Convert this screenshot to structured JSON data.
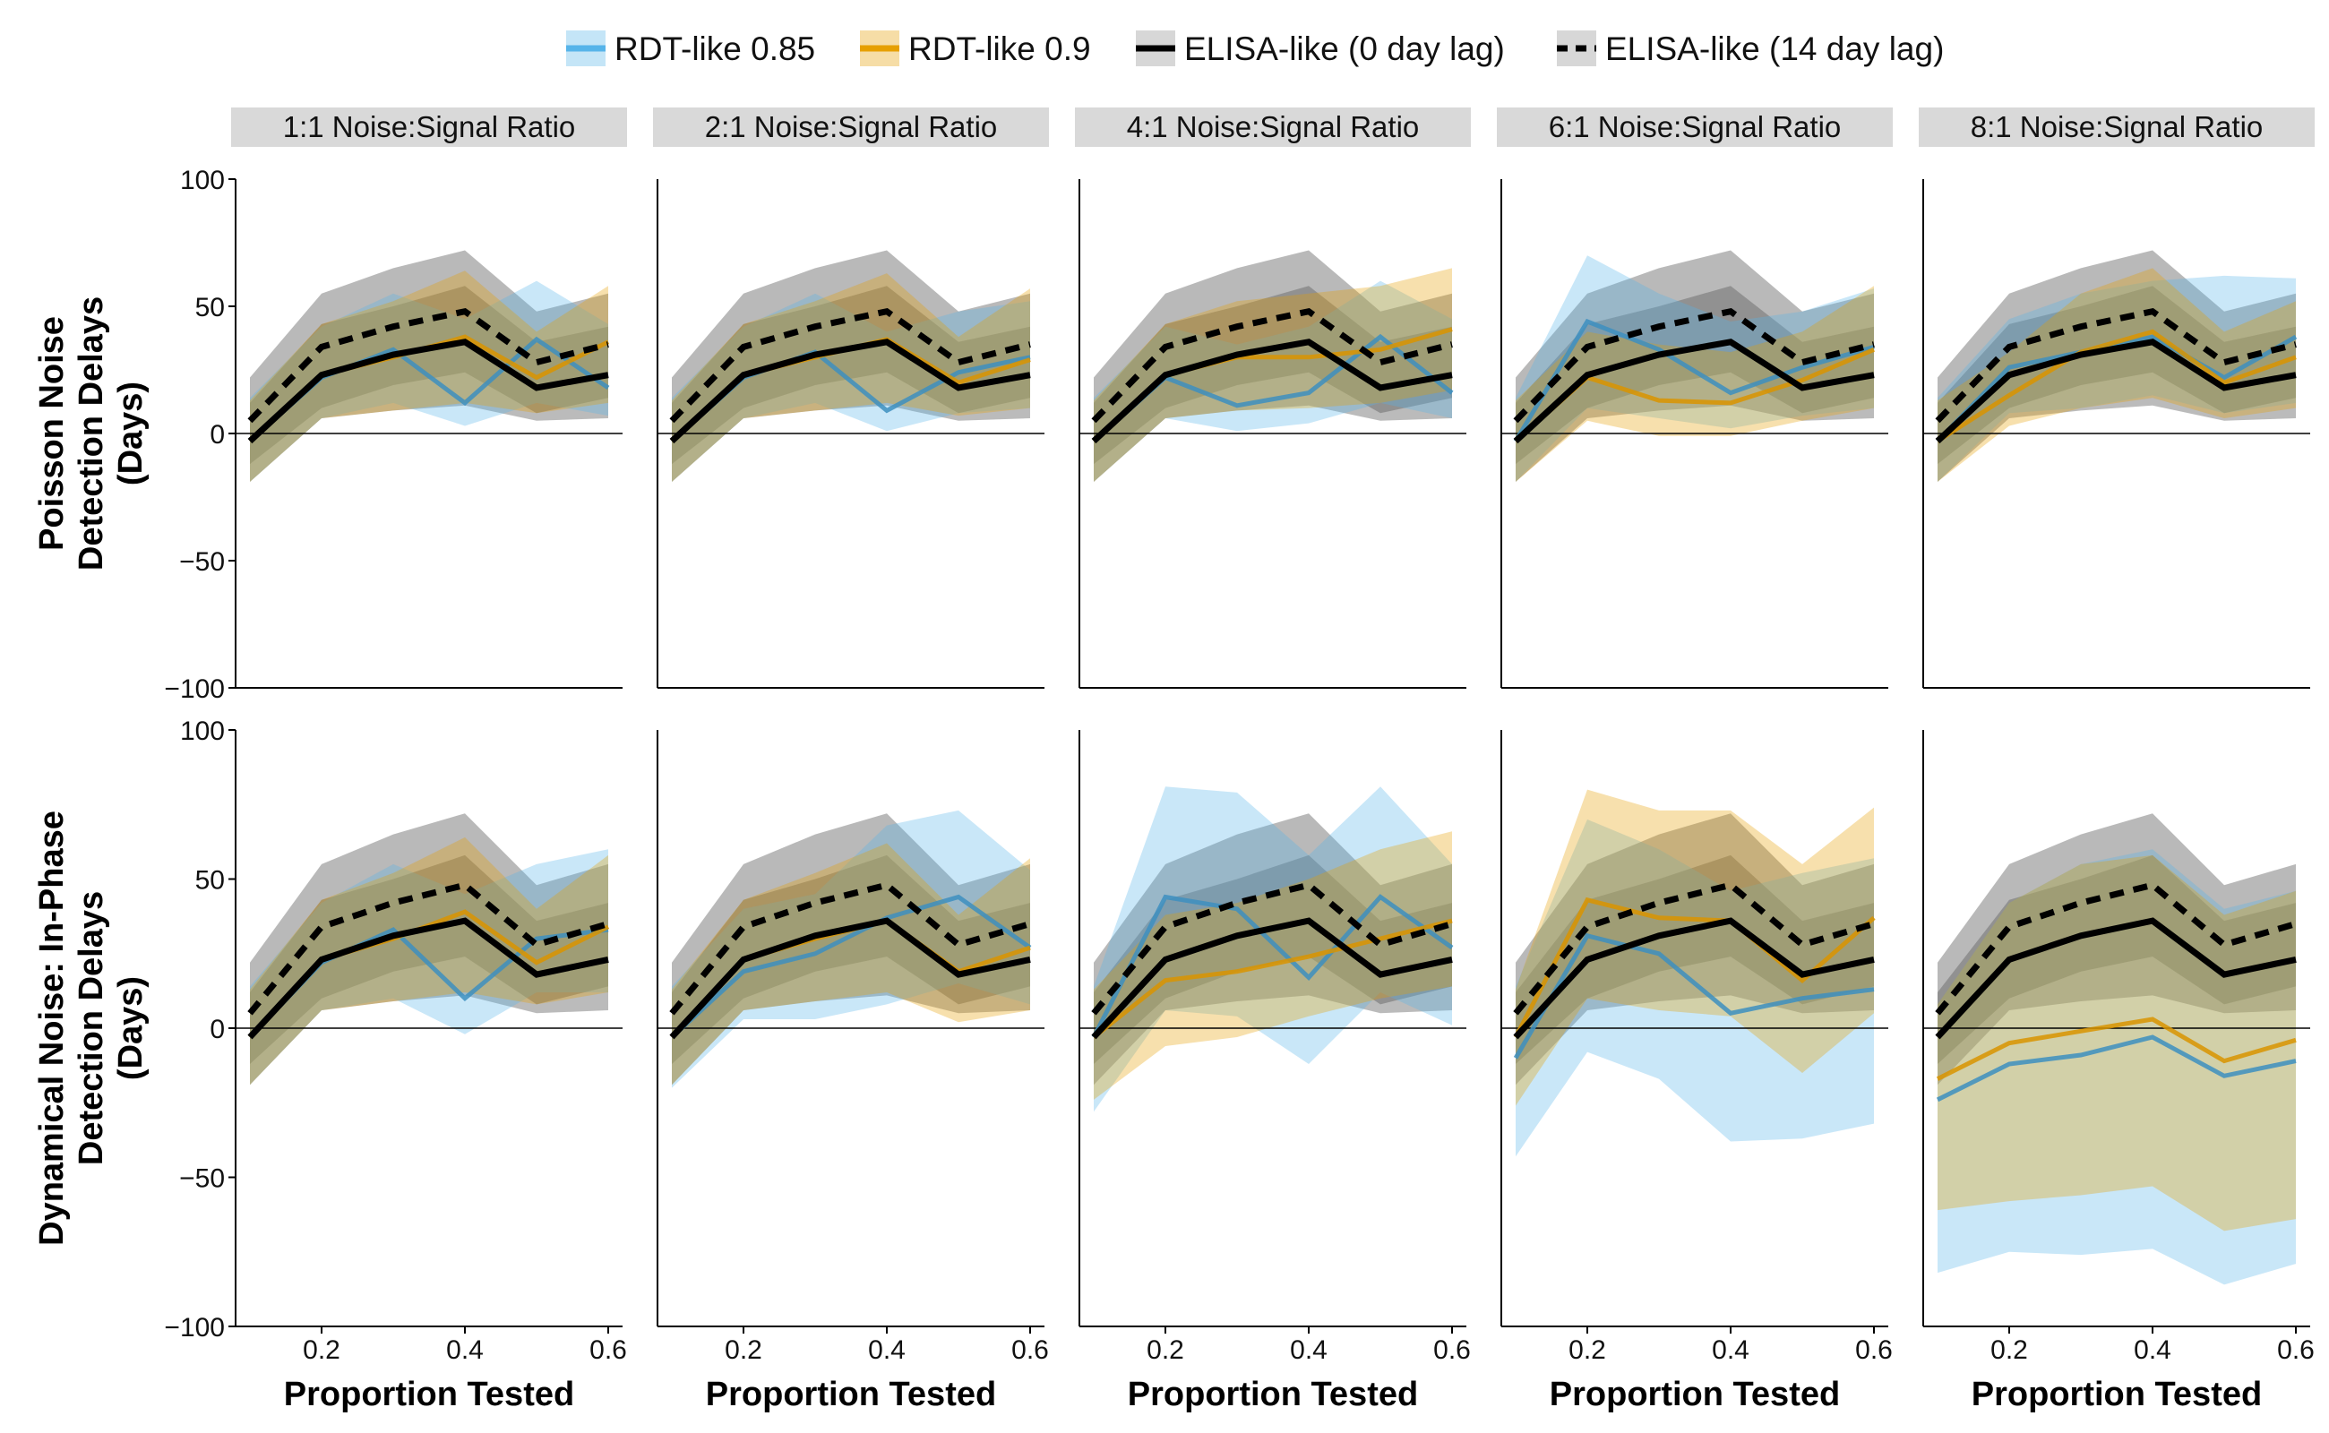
{
  "chart_data": {
    "type": "line",
    "legend": {
      "position": "top",
      "entries": [
        {
          "label": "RDT-like 0.85",
          "color": "#56B4E9",
          "linestyle": "solid"
        },
        {
          "label": "RDT-like 0.9",
          "color": "#E69F00",
          "linestyle": "solid"
        },
        {
          "label": "ELISA-like (0 day lag)",
          "color": "#000000",
          "linestyle": "solid"
        },
        {
          "label": "ELISA-like (14 day lag)",
          "color": "#000000",
          "linestyle": "dashed"
        }
      ]
    },
    "columns": [
      "1:1 Noise:Signal Ratio",
      "2:1 Noise:Signal Ratio",
      "4:1 Noise:Signal Ratio",
      "6:1 Noise:Signal Ratio",
      "8:1 Noise:Signal Ratio"
    ],
    "rows": [
      {
        "label_lines": [
          "Poisson Noise",
          "Detection Delays",
          "(Days)"
        ]
      },
      {
        "label_lines": [
          "Dynamical Noise: In-Phase",
          "Detection Delays",
          "(Days)"
        ]
      }
    ],
    "xlabel": "Proportion Tested",
    "x": [
      0.1,
      0.2,
      0.3,
      0.4,
      0.5,
      0.6
    ],
    "xticks": [
      "0.2",
      "0.4",
      "0.6"
    ],
    "xtick_values": [
      0.2,
      0.4,
      0.6
    ],
    "xlim": [
      0.08,
      0.62
    ],
    "ylim": [
      -100,
      100
    ],
    "yticks": [
      "100",
      "50",
      "0",
      "−50",
      "−100"
    ],
    "ytick_values": [
      100,
      50,
      0,
      -50,
      -100
    ],
    "reference_line_y": 0,
    "grid": false,
    "elisa_0_lag": {
      "mean": [
        -3,
        23,
        31,
        36,
        18,
        23
      ],
      "lo": [
        -19,
        6,
        9,
        11,
        5,
        6
      ],
      "hi": [
        12,
        43,
        50,
        58,
        36,
        42
      ]
    },
    "elisa_14_lag": {
      "mean": [
        5,
        34,
        42,
        48,
        28,
        35
      ],
      "lo": [
        -12,
        10,
        19,
        24,
        8,
        14
      ],
      "hi": [
        22,
        55,
        65,
        72,
        48,
        55
      ]
    },
    "panels": [
      {
        "row": 0,
        "col": 0,
        "rdt85": {
          "mean": [
            -3,
            22,
            33,
            12,
            37,
            18
          ],
          "lo": [
            -19,
            6,
            12,
            3,
            12,
            7
          ],
          "hi": [
            14,
            42,
            55,
            45,
            60,
            43
          ]
        },
        "rdt90": {
          "mean": [
            -3,
            23,
            30,
            38,
            22,
            36
          ],
          "lo": [
            -19,
            6,
            9,
            12,
            8,
            12
          ],
          "hi": [
            13,
            43,
            52,
            64,
            40,
            58
          ]
        }
      },
      {
        "row": 0,
        "col": 1,
        "rdt85": {
          "mean": [
            -3,
            22,
            32,
            9,
            24,
            30
          ],
          "lo": [
            -19,
            6,
            12,
            1,
            8,
            10
          ],
          "hi": [
            14,
            42,
            55,
            40,
            48,
            52
          ]
        },
        "rdt90": {
          "mean": [
            -3,
            23,
            30,
            37,
            20,
            29
          ],
          "lo": [
            -19,
            6,
            9,
            12,
            7,
            10
          ],
          "hi": [
            13,
            43,
            52,
            63,
            38,
            57
          ]
        }
      },
      {
        "row": 0,
        "col": 2,
        "rdt85": {
          "mean": [
            -3,
            22,
            11,
            16,
            38,
            16
          ],
          "lo": [
            -19,
            6,
            1,
            4,
            12,
            6
          ],
          "hi": [
            14,
            42,
            35,
            42,
            60,
            45
          ]
        },
        "rdt90": {
          "mean": [
            -3,
            23,
            30,
            30,
            33,
            41
          ],
          "lo": [
            -19,
            6,
            9,
            10,
            12,
            17
          ],
          "hi": [
            13,
            43,
            52,
            55,
            58,
            65
          ]
        }
      },
      {
        "row": 0,
        "col": 3,
        "rdt85": {
          "mean": [
            -3,
            44,
            33,
            16,
            26,
            34
          ],
          "lo": [
            -19,
            10,
            6,
            2,
            7,
            10
          ],
          "hi": [
            14,
            70,
            55,
            44,
            48,
            57
          ]
        },
        "rdt90": {
          "mean": [
            -3,
            22,
            13,
            12,
            21,
            33
          ],
          "lo": [
            -19,
            5,
            -1,
            -1,
            5,
            10
          ],
          "hi": [
            13,
            40,
            35,
            32,
            40,
            58
          ]
        }
      },
      {
        "row": 0,
        "col": 4,
        "rdt85": {
          "mean": [
            -3,
            26,
            32,
            38,
            22,
            38
          ],
          "lo": [
            -19,
            8,
            10,
            15,
            8,
            12
          ],
          "hi": [
            14,
            45,
            55,
            60,
            62,
            61
          ]
        },
        "rdt90": {
          "mean": [
            -3,
            15,
            32,
            40,
            20,
            30
          ],
          "lo": [
            -19,
            3,
            10,
            14,
            6,
            10
          ],
          "hi": [
            13,
            32,
            55,
            65,
            40,
            52
          ]
        }
      },
      {
        "row": 1,
        "col": 0,
        "rdt85": {
          "mean": [
            -3,
            22,
            33,
            10,
            30,
            33
          ],
          "lo": [
            -19,
            6,
            10,
            -2,
            12,
            12
          ],
          "hi": [
            14,
            42,
            55,
            45,
            55,
            60
          ]
        },
        "rdt90": {
          "mean": [
            -3,
            23,
            30,
            39,
            22,
            34
          ],
          "lo": [
            -19,
            6,
            9,
            12,
            8,
            12
          ],
          "hi": [
            13,
            43,
            52,
            64,
            40,
            58
          ]
        }
      },
      {
        "row": 1,
        "col": 1,
        "rdt85": {
          "mean": [
            -3,
            19,
            25,
            37,
            44,
            27
          ],
          "lo": [
            -20,
            3,
            3,
            8,
            15,
            8
          ],
          "hi": [
            14,
            40,
            45,
            68,
            73,
            53
          ]
        },
        "rdt90": {
          "mean": [
            -3,
            23,
            30,
            36,
            19,
            27
          ],
          "lo": [
            -19,
            6,
            9,
            12,
            2,
            6
          ],
          "hi": [
            13,
            43,
            52,
            62,
            38,
            57
          ]
        }
      },
      {
        "row": 1,
        "col": 2,
        "rdt85": {
          "mean": [
            -3,
            44,
            40,
            17,
            44,
            27
          ],
          "lo": [
            -28,
            6,
            4,
            -12,
            12,
            1
          ],
          "hi": [
            14,
            81,
            79,
            58,
            81,
            55
          ]
        },
        "rdt90": {
          "mean": [
            -3,
            16,
            19,
            24,
            30,
            36
          ],
          "lo": [
            -24,
            -6,
            -3,
            4,
            10,
            14
          ],
          "hi": [
            13,
            38,
            42,
            50,
            60,
            66
          ]
        }
      },
      {
        "row": 1,
        "col": 3,
        "rdt85": {
          "mean": [
            -10,
            31,
            25,
            5,
            10,
            13
          ],
          "lo": [
            -43,
            -8,
            -17,
            -38,
            -37,
            -32
          ],
          "hi": [
            14,
            70,
            60,
            46,
            52,
            57
          ]
        },
        "rdt90": {
          "mean": [
            -3,
            43,
            37,
            36,
            16,
            37
          ],
          "lo": [
            -26,
            10,
            6,
            4,
            -15,
            5
          ],
          "hi": [
            13,
            80,
            73,
            73,
            55,
            74
          ]
        }
      },
      {
        "row": 1,
        "col": 4,
        "rdt85": {
          "mean": [
            -24,
            -12,
            -9,
            -3,
            -16,
            -11
          ],
          "lo": [
            -82,
            -75,
            -76,
            -74,
            -86,
            -79
          ],
          "hi": [
            8,
            42,
            55,
            60,
            40,
            46
          ]
        },
        "rdt90": {
          "mean": [
            -17,
            -5,
            -1,
            3,
            -11,
            -4
          ],
          "lo": [
            -61,
            -58,
            -56,
            -53,
            -68,
            -64
          ],
          "hi": [
            8,
            42,
            55,
            58,
            38,
            46
          ]
        }
      }
    ]
  }
}
